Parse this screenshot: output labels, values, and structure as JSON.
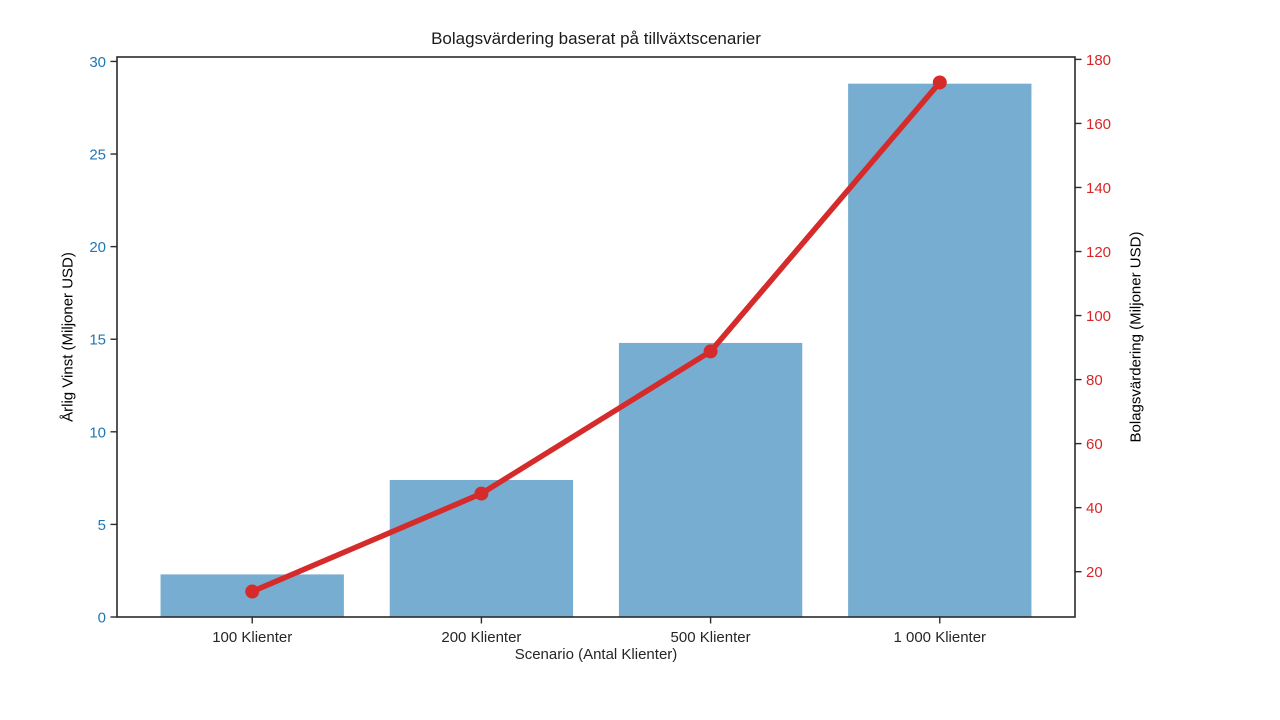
{
  "chart_data": {
    "type": "combo",
    "subtype": [
      "bar",
      "line"
    ],
    "title": "Bolagsvärdering baserat på tillväxtscenarier",
    "xlabel": "Scenario (Antal Klienter)",
    "categories": [
      "100 Klienter",
      "200 Klienter",
      "500 Klienter",
      "1 000 Klienter"
    ],
    "series": [
      {
        "name": "Årlig Vinst",
        "type": "bar",
        "axis": "left",
        "values": [
          2.3,
          7.4,
          14.8,
          28.8
        ],
        "color": "#78ADD2"
      },
      {
        "name": "Bolagsvärdering",
        "type": "line",
        "axis": "right",
        "values": [
          13.8,
          44.4,
          88.8,
          172.8
        ],
        "color": "#D62B2B",
        "marker": "circle"
      }
    ],
    "left_axis": {
      "label": "Årlig Vinst (Miljoner USD)",
      "color": "#1F77B4",
      "ticks": [
        0,
        5,
        10,
        15,
        20,
        25,
        30
      ],
      "ylim": [
        0,
        30.24
      ]
    },
    "right_axis": {
      "label": "Bolagsvärdering (Miljoner USD)",
      "color": "#D62728",
      "ticks": [
        20,
        40,
        60,
        80,
        100,
        120,
        140,
        160,
        180
      ],
      "ylim": [
        5.85,
        180.75
      ]
    },
    "grid": false,
    "legend": null,
    "spine_color": "#2b2b2b",
    "tick_label_color": "#262626",
    "background": "#ffffff"
  }
}
